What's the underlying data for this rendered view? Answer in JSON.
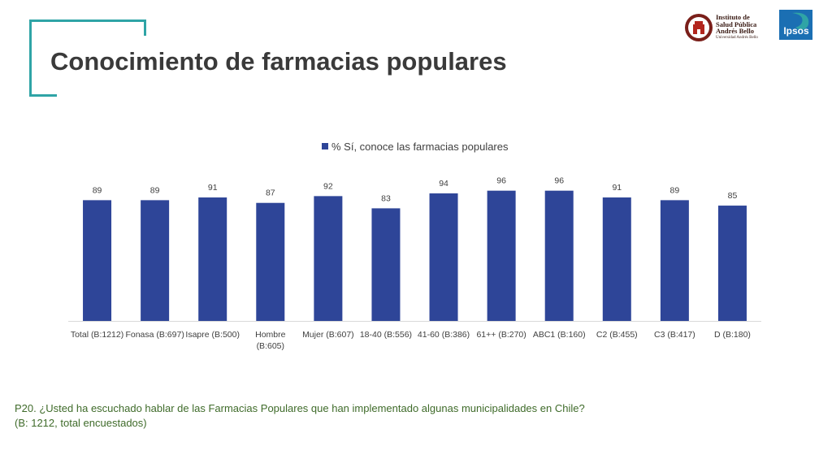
{
  "page": {
    "title": "Conocimiento de farmacias populares",
    "footnote_line1": "P20. ¿Usted ha escuchado hablar de las Farmacias Populares que han implementado algunas municipalidades en Chile?",
    "footnote_line2": "(B: 1212, total encuestados)"
  },
  "logos": {
    "iab_line1": "Instituto de",
    "iab_line2": "Salud Pública",
    "iab_line3": "Andrés Bello",
    "iab_line4": "Universidad Andrés Bello",
    "ipsos": "Ipsos"
  },
  "colors": {
    "bar": "#2e4598",
    "accent": "#2fa4a6",
    "title": "#3a3a3a",
    "footnote": "#3f6b2a"
  },
  "chart_data": {
    "type": "bar",
    "categories": [
      [
        "Total (B:1212)"
      ],
      [
        "Fonasa (B:697)"
      ],
      [
        "Isapre (B:500)"
      ],
      [
        "Hombre",
        "(B:605)"
      ],
      [
        "Mujer (B:607)"
      ],
      [
        "18-40 (B:556)"
      ],
      [
        "41-60 (B:386)"
      ],
      [
        "61++ (B:270)"
      ],
      [
        "ABC1 (B:160)"
      ],
      [
        "C2 (B:455)"
      ],
      [
        "C3 (B:417)"
      ],
      [
        "D (B:180)"
      ]
    ],
    "series": [
      {
        "name": "% Sí, conoce las farmacias populares",
        "values": [
          89,
          89,
          91,
          87,
          92,
          83,
          94,
          96,
          96,
          91,
          89,
          85
        ]
      }
    ],
    "ylim": [
      0,
      100
    ],
    "legend": "top-center",
    "grid": false,
    "data_labels": true
  }
}
